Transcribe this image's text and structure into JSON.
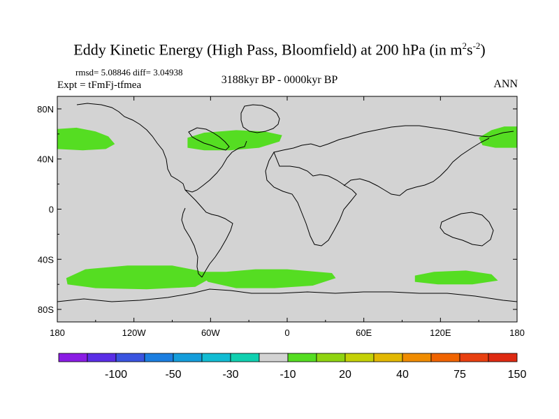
{
  "title": {
    "main": "Eddy Kinetic Energy (High Pass, Bloomfield) at 200 hPa (in m",
    "unit_sup1": "2",
    "unit_s": "s",
    "unit_sup2": "-2",
    "close": ")"
  },
  "stats": "rmsd= 5.08846 diff= 3.04938",
  "experiment": "Expt = tFmFj-tfmea",
  "period": "3188kyr BP - 0000kyr BP",
  "season": "ANN",
  "map": {
    "projection": "cylindrical equidistant",
    "background_color": "#d3d3d3",
    "lon_range": [
      -180,
      180
    ],
    "lat_range": [
      -90,
      90
    ],
    "lat_ticks": [
      {
        "value": 80,
        "label": "80N"
      },
      {
        "value": 40,
        "label": "40N"
      },
      {
        "value": 0,
        "label": "0"
      },
      {
        "value": -40,
        "label": "40S"
      },
      {
        "value": -80,
        "label": "80S"
      }
    ],
    "lon_ticks": [
      {
        "value": -180,
        "label": "180"
      },
      {
        "value": -120,
        "label": "120W"
      },
      {
        "value": -60,
        "label": "60W"
      },
      {
        "value": 0,
        "label": "0"
      },
      {
        "value": 60,
        "label": "60E"
      },
      {
        "value": 120,
        "label": "120E"
      },
      {
        "value": 180,
        "label": "180"
      }
    ],
    "anomaly_regions": [
      {
        "name": "north-pacific-west",
        "color": "#55dd22",
        "points": [
          [
            -180,
            64
          ],
          [
            -165,
            65
          ],
          [
            -150,
            62
          ],
          [
            -140,
            58
          ],
          [
            -135,
            52
          ],
          [
            -142,
            48
          ],
          [
            -160,
            47
          ],
          [
            -180,
            48
          ]
        ]
      },
      {
        "name": "north-pacific-east",
        "color": "#55dd22",
        "points": [
          [
            180,
            66
          ],
          [
            170,
            66
          ],
          [
            160,
            63
          ],
          [
            150,
            57
          ],
          [
            153,
            51
          ],
          [
            163,
            49
          ],
          [
            180,
            49
          ]
        ]
      },
      {
        "name": "north-atlantic",
        "color": "#55dd22",
        "points": [
          [
            -78,
            57
          ],
          [
            -65,
            61
          ],
          [
            -40,
            63
          ],
          [
            -18,
            62
          ],
          [
            -4,
            59
          ],
          [
            -6,
            54
          ],
          [
            -22,
            49
          ],
          [
            -45,
            47
          ],
          [
            -65,
            47
          ],
          [
            -78,
            49
          ]
        ]
      },
      {
        "name": "southern-ocean-1",
        "color": "#55dd22",
        "points": [
          [
            -173,
            -55
          ],
          [
            -158,
            -48
          ],
          [
            -125,
            -45
          ],
          [
            -90,
            -45
          ],
          [
            -70,
            -49
          ],
          [
            -58,
            -54
          ],
          [
            -72,
            -62
          ],
          [
            -110,
            -64
          ],
          [
            -150,
            -63
          ],
          [
            -172,
            -60
          ]
        ]
      },
      {
        "name": "southern-ocean-2",
        "color": "#55dd22",
        "points": [
          [
            -70,
            -50
          ],
          [
            -48,
            -50
          ],
          [
            -25,
            -48
          ],
          [
            0,
            -48
          ],
          [
            35,
            -51
          ],
          [
            38,
            -55
          ],
          [
            20,
            -61
          ],
          [
            -10,
            -63
          ],
          [
            -40,
            -63
          ],
          [
            -62,
            -58
          ]
        ]
      },
      {
        "name": "southern-ocean-3",
        "color": "#55dd22",
        "points": [
          [
            100,
            -53
          ],
          [
            115,
            -50
          ],
          [
            140,
            -49
          ],
          [
            160,
            -52
          ],
          [
            165,
            -57
          ],
          [
            145,
            -60
          ],
          [
            118,
            -60
          ],
          [
            100,
            -58
          ]
        ]
      }
    ]
  },
  "colorbar": {
    "colors": [
      "#8a1ce4",
      "#5a2ee6",
      "#3a54e0",
      "#1b7ee0",
      "#149ddb",
      "#12bcd3",
      "#10d0b0",
      "#d3d3d3",
      "#55dd22",
      "#8fd411",
      "#c4d107",
      "#e2b802",
      "#f08c00",
      "#f06400",
      "#e84010",
      "#de2a12"
    ],
    "labels": [
      "-100",
      "-50",
      "-30",
      "-10",
      "20",
      "40",
      "75",
      "150"
    ]
  }
}
